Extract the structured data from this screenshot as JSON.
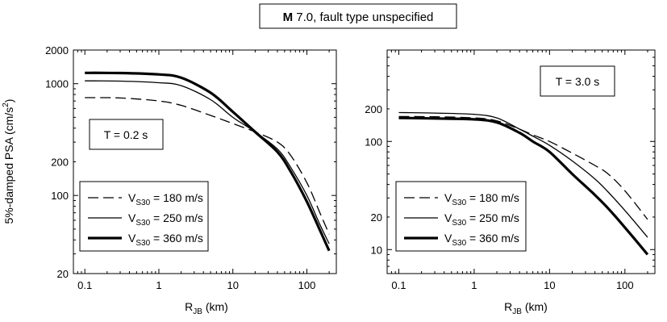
{
  "figure": {
    "title_bold": "M",
    "title_rest": " 7.0, fault type unspecified"
  },
  "legend": {
    "prefix": "V",
    "subscript": "S30",
    "entries": [
      " = 180 m/s",
      " = 250 m/s",
      " = 360 m/s"
    ]
  },
  "chart_data": [
    {
      "type": "line",
      "xscale": "log",
      "yscale": "log",
      "xlim": [
        0.07,
        250
      ],
      "ylim": [
        20,
        2000
      ],
      "xticks": [
        0.1,
        1,
        10,
        100
      ],
      "xtick_labels": [
        "0.1",
        "1",
        "10",
        "100"
      ],
      "yticks": [
        20,
        100,
        200,
        1000,
        2000
      ],
      "ytick_labels": [
        "20",
        "100",
        "200",
        "1000",
        "2000"
      ],
      "xlabel_main": "R",
      "xlabel_sub": "JB",
      "xlabel_rest": " (km)",
      "ylabel_main": "5%-damped PSA (cm/s",
      "ylabel_sup": "2",
      "ylabel_end": ")",
      "annotation": "T = 0.2 s",
      "legend_position": "bottom-left",
      "series": [
        {
          "name": "V_S30 = 180 m/s",
          "style": "dashed",
          "x": [
            0.1,
            0.3,
            1,
            2,
            5,
            10,
            20,
            40,
            60,
            100,
            150,
            200
          ],
          "y": [
            750,
            745,
            700,
            640,
            520,
            440,
            370,
            300,
            230,
            130,
            70,
            45
          ]
        },
        {
          "name": "V_S30 = 250 m/s",
          "style": "thin",
          "x": [
            0.1,
            0.3,
            1,
            2,
            5,
            10,
            20,
            40,
            60,
            100,
            150,
            200
          ],
          "y": [
            1060,
            1055,
            1020,
            960,
            720,
            500,
            370,
            260,
            180,
            100,
            55,
            37
          ]
        },
        {
          "name": "V_S30 = 360 m/s",
          "style": "thick",
          "x": [
            0.1,
            0.3,
            1,
            2,
            5,
            10,
            20,
            40,
            60,
            100,
            150,
            200
          ],
          "y": [
            1250,
            1245,
            1210,
            1130,
            830,
            560,
            370,
            245,
            165,
            88,
            49,
            32
          ]
        }
      ]
    },
    {
      "type": "line",
      "xscale": "log",
      "yscale": "log",
      "xlim": [
        0.07,
        250
      ],
      "ylim": [
        6,
        700
      ],
      "xticks": [
        0.1,
        1,
        10,
        100
      ],
      "xtick_labels": [
        "0.1",
        "1",
        "10",
        "100"
      ],
      "yticks": [
        10,
        20,
        100,
        200
      ],
      "ytick_labels": [
        "10",
        "20",
        "100",
        "200"
      ],
      "xlabel_main": "R",
      "xlabel_sub": "JB",
      "xlabel_rest": " (km)",
      "annotation": "T = 3.0 s",
      "legend_position": "bottom-left",
      "series": [
        {
          "name": "V_S30 = 180 m/s",
          "style": "dashed",
          "x": [
            0.1,
            0.3,
            1,
            2,
            4,
            6,
            10,
            20,
            40,
            60,
            100,
            200
          ],
          "y": [
            170,
            169,
            165,
            155,
            130,
            115,
            100,
            78,
            60,
            50,
            35,
            19
          ]
        },
        {
          "name": "V_S30 = 250 m/s",
          "style": "thin",
          "x": [
            0.1,
            0.3,
            1,
            2,
            4,
            6,
            10,
            20,
            40,
            60,
            100,
            200
          ],
          "y": [
            185,
            183,
            178,
            165,
            130,
            112,
            92,
            66,
            45,
            34,
            23,
            13
          ]
        },
        {
          "name": "V_S30 = 360 m/s",
          "style": "thick",
          "x": [
            0.1,
            0.3,
            1,
            2,
            4,
            6,
            10,
            20,
            40,
            60,
            100,
            200
          ],
          "y": [
            165,
            163,
            160,
            150,
            120,
            100,
            80,
            50,
            32,
            24,
            16,
            9
          ]
        }
      ]
    }
  ]
}
